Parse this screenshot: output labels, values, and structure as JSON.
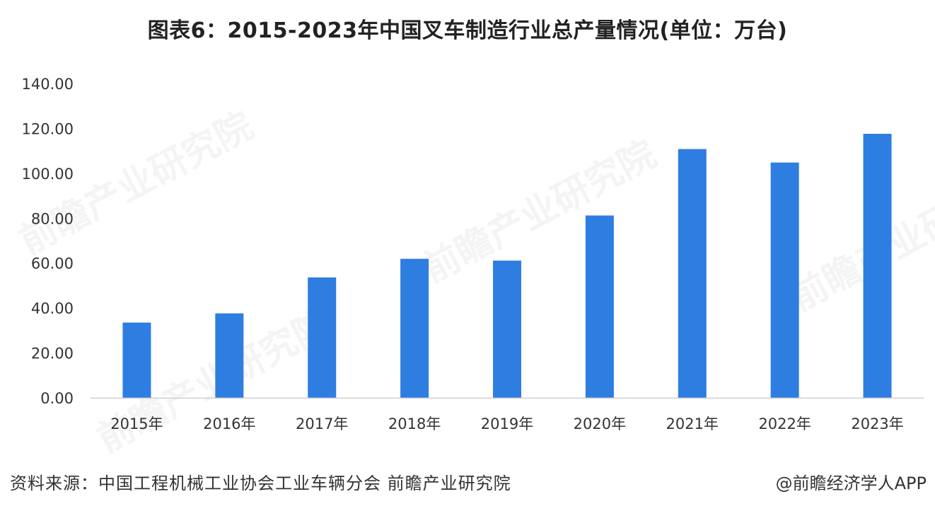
{
  "title": "图表6：2015-2023年中国叉车制造行业总产量情况(单位：万台)",
  "chart_data": {
    "type": "bar",
    "categories": [
      "2015年",
      "2016年",
      "2017年",
      "2018年",
      "2019年",
      "2020年",
      "2021年",
      "2022年",
      "2023年"
    ],
    "values": [
      33.5,
      37.6,
      53.6,
      61.9,
      61.1,
      81.2,
      110.8,
      104.8,
      117.6
    ],
    "ylim": [
      0,
      140
    ],
    "yticks": [
      "0.00",
      "20.00",
      "40.00",
      "60.00",
      "80.00",
      "100.00",
      "120.00",
      "140.00"
    ],
    "bar_color": "#2e7de1",
    "grid": false,
    "legend": "none"
  },
  "source": "资料来源：中国工程机械工业协会工业车辆分会 前瞻产业研究院",
  "credit": "@前瞻经济学人APP",
  "watermark": "前瞻产业研究院"
}
